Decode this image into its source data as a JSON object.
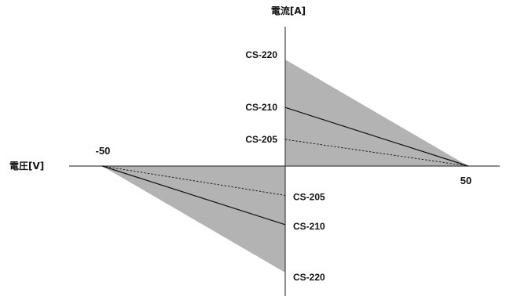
{
  "chart_data": {
    "type": "line",
    "xlabel": "電圧[V]",
    "ylabel": "電流[A]",
    "x_ticks": [
      "-50",
      "50"
    ],
    "xlim": [
      -50,
      50
    ],
    "colors": {
      "fill": "#b3b3b3",
      "line": "#111111",
      "axis": "#444444"
    },
    "series": [
      {
        "name": "CS-220",
        "style": "filled-area",
        "points": [
          [
            0,
            2.0
          ],
          [
            50,
            0
          ]
        ]
      },
      {
        "name": "CS-210",
        "style": "solid",
        "points": [
          [
            0,
            1.1
          ],
          [
            50,
            0
          ]
        ]
      },
      {
        "name": "CS-205",
        "style": "dashed",
        "points": [
          [
            0,
            0.5
          ],
          [
            50,
            0
          ]
        ]
      },
      {
        "name": "CS-205",
        "style": "dashed",
        "points": [
          [
            -50,
            0
          ],
          [
            0,
            -0.55
          ]
        ]
      },
      {
        "name": "CS-210",
        "style": "solid",
        "points": [
          [
            -50,
            0
          ],
          [
            0,
            -1.1
          ]
        ]
      },
      {
        "name": "CS-220",
        "style": "filled-area",
        "points": [
          [
            -50,
            0
          ],
          [
            0,
            -2.0
          ]
        ]
      }
    ]
  }
}
